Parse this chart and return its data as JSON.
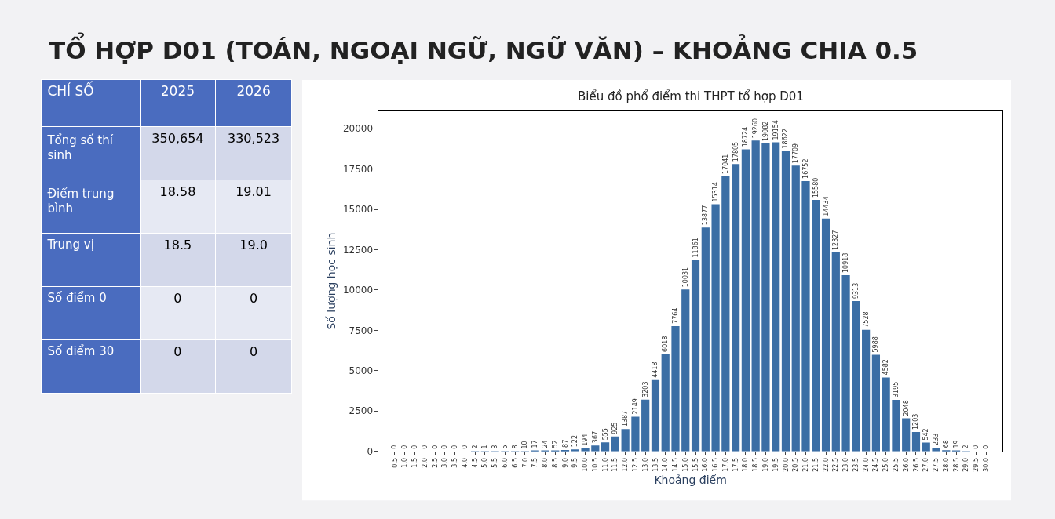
{
  "chart_data": [
    {
      "type": "other",
      "title": "TỔ HỢP D01 (TOÁN, NGOẠI NGỮ, NGỮ VĂN) – KHOẢNG CHIA 0.5",
      "ylabel": "CHỈ SỐ",
      "categories": [
        "2025",
        "2026"
      ],
      "y_categories": [
        "Tổng số thí sinh",
        "Điểm trung bình",
        "Trung vị",
        "Số điểm 0",
        "Số điểm 30"
      ],
      "cell_labels": [
        [
          "350,654",
          "330,523"
        ],
        [
          "18.58",
          "19.01"
        ],
        [
          "18.5",
          "19.0"
        ],
        [
          "0",
          "0"
        ],
        [
          "0",
          "0"
        ]
      ]
    },
    {
      "type": "bar",
      "title": "Biểu đồ phổ điểm thi THPT tổ hợp D01",
      "xlabel": "Khoảng điểm",
      "ylabel": "Số lượng học sinh",
      "color": "#3b6ea5",
      "categories": [
        "0.5",
        "1.0",
        "1.5",
        "2.0",
        "2.5",
        "3.0",
        "3.5",
        "4.0",
        "4.5",
        "5.0",
        "5.5",
        "6.0",
        "6.5",
        "7.0",
        "7.5",
        "8.0",
        "8.5",
        "9.0",
        "9.5",
        "10.0",
        "10.5",
        "11.0",
        "11.5",
        "12.0",
        "12.5",
        "13.0",
        "13.5",
        "14.0",
        "14.5",
        "15.0",
        "15.5",
        "16.0",
        "16.5",
        "17.0",
        "17.5",
        "18.0",
        "18.5",
        "19.0",
        "19.5",
        "20.0",
        "20.5",
        "21.0",
        "21.5",
        "22.0",
        "22.5",
        "23.0",
        "23.5",
        "24.0",
        "24.5",
        "25.0",
        "25.5",
        "26.0",
        "26.5",
        "27.0",
        "27.5",
        "28.0",
        "28.5",
        "29.0",
        "29.5",
        "30.0"
      ],
      "values": [
        0,
        0,
        0,
        0,
        0,
        0,
        0,
        0,
        2,
        1,
        3,
        5,
        8,
        10,
        17,
        24,
        52,
        87,
        122,
        194,
        367,
        555,
        925,
        1387,
        2149,
        3203,
        4418,
        6018,
        7764,
        10031,
        11861,
        13877,
        15314,
        17041,
        17805,
        18724,
        19260,
        19082,
        19154,
        18622,
        17709,
        16752,
        15580,
        14434,
        12327,
        10918,
        9313,
        7528,
        5988,
        4582,
        3195,
        2048,
        1203,
        542,
        233,
        68,
        19,
        2,
        0,
        0
      ],
      "ylim": [
        0,
        21100
      ],
      "yticks": [
        0,
        2500,
        5000,
        7500,
        10000,
        12500,
        15000,
        17500,
        20000
      ],
      "data_labels": true
    }
  ]
}
